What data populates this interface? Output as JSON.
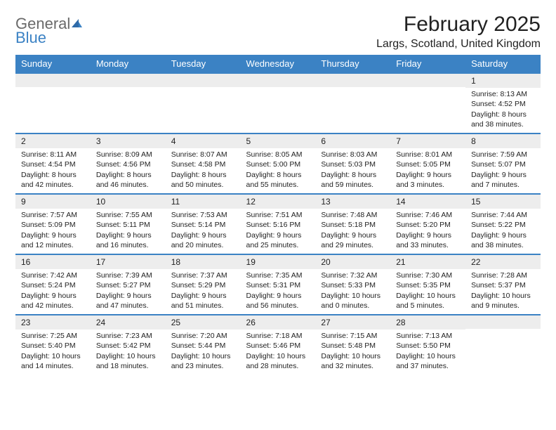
{
  "brand": {
    "general": "General",
    "blue": "Blue"
  },
  "title": "February 2025",
  "location": "Largs, Scotland, United Kingdom",
  "colors": {
    "header_bg": "#3b82c4",
    "header_text": "#ffffff",
    "row_border": "#3b82c4",
    "daynum_bg": "#ededed",
    "page_bg": "#ffffff",
    "text": "#222222",
    "logo_gray": "#6a6a6a",
    "logo_blue": "#3b82c4"
  },
  "typography": {
    "title_fontsize": 30,
    "location_fontsize": 16,
    "header_fontsize": 13,
    "cell_fontsize": 10.5,
    "daynum_fontsize": 12
  },
  "weekdays": [
    "Sunday",
    "Monday",
    "Tuesday",
    "Wednesday",
    "Thursday",
    "Friday",
    "Saturday"
  ],
  "weeks": [
    [
      null,
      null,
      null,
      null,
      null,
      null,
      {
        "n": "1",
        "sunrise": "Sunrise: 8:13 AM",
        "sunset": "Sunset: 4:52 PM",
        "daylight": "Daylight: 8 hours and 38 minutes."
      }
    ],
    [
      {
        "n": "2",
        "sunrise": "Sunrise: 8:11 AM",
        "sunset": "Sunset: 4:54 PM",
        "daylight": "Daylight: 8 hours and 42 minutes."
      },
      {
        "n": "3",
        "sunrise": "Sunrise: 8:09 AM",
        "sunset": "Sunset: 4:56 PM",
        "daylight": "Daylight: 8 hours and 46 minutes."
      },
      {
        "n": "4",
        "sunrise": "Sunrise: 8:07 AM",
        "sunset": "Sunset: 4:58 PM",
        "daylight": "Daylight: 8 hours and 50 minutes."
      },
      {
        "n": "5",
        "sunrise": "Sunrise: 8:05 AM",
        "sunset": "Sunset: 5:00 PM",
        "daylight": "Daylight: 8 hours and 55 minutes."
      },
      {
        "n": "6",
        "sunrise": "Sunrise: 8:03 AM",
        "sunset": "Sunset: 5:03 PM",
        "daylight": "Daylight: 8 hours and 59 minutes."
      },
      {
        "n": "7",
        "sunrise": "Sunrise: 8:01 AM",
        "sunset": "Sunset: 5:05 PM",
        "daylight": "Daylight: 9 hours and 3 minutes."
      },
      {
        "n": "8",
        "sunrise": "Sunrise: 7:59 AM",
        "sunset": "Sunset: 5:07 PM",
        "daylight": "Daylight: 9 hours and 7 minutes."
      }
    ],
    [
      {
        "n": "9",
        "sunrise": "Sunrise: 7:57 AM",
        "sunset": "Sunset: 5:09 PM",
        "daylight": "Daylight: 9 hours and 12 minutes."
      },
      {
        "n": "10",
        "sunrise": "Sunrise: 7:55 AM",
        "sunset": "Sunset: 5:11 PM",
        "daylight": "Daylight: 9 hours and 16 minutes."
      },
      {
        "n": "11",
        "sunrise": "Sunrise: 7:53 AM",
        "sunset": "Sunset: 5:14 PM",
        "daylight": "Daylight: 9 hours and 20 minutes."
      },
      {
        "n": "12",
        "sunrise": "Sunrise: 7:51 AM",
        "sunset": "Sunset: 5:16 PM",
        "daylight": "Daylight: 9 hours and 25 minutes."
      },
      {
        "n": "13",
        "sunrise": "Sunrise: 7:48 AM",
        "sunset": "Sunset: 5:18 PM",
        "daylight": "Daylight: 9 hours and 29 minutes."
      },
      {
        "n": "14",
        "sunrise": "Sunrise: 7:46 AM",
        "sunset": "Sunset: 5:20 PM",
        "daylight": "Daylight: 9 hours and 33 minutes."
      },
      {
        "n": "15",
        "sunrise": "Sunrise: 7:44 AM",
        "sunset": "Sunset: 5:22 PM",
        "daylight": "Daylight: 9 hours and 38 minutes."
      }
    ],
    [
      {
        "n": "16",
        "sunrise": "Sunrise: 7:42 AM",
        "sunset": "Sunset: 5:24 PM",
        "daylight": "Daylight: 9 hours and 42 minutes."
      },
      {
        "n": "17",
        "sunrise": "Sunrise: 7:39 AM",
        "sunset": "Sunset: 5:27 PM",
        "daylight": "Daylight: 9 hours and 47 minutes."
      },
      {
        "n": "18",
        "sunrise": "Sunrise: 7:37 AM",
        "sunset": "Sunset: 5:29 PM",
        "daylight": "Daylight: 9 hours and 51 minutes."
      },
      {
        "n": "19",
        "sunrise": "Sunrise: 7:35 AM",
        "sunset": "Sunset: 5:31 PM",
        "daylight": "Daylight: 9 hours and 56 minutes."
      },
      {
        "n": "20",
        "sunrise": "Sunrise: 7:32 AM",
        "sunset": "Sunset: 5:33 PM",
        "daylight": "Daylight: 10 hours and 0 minutes."
      },
      {
        "n": "21",
        "sunrise": "Sunrise: 7:30 AM",
        "sunset": "Sunset: 5:35 PM",
        "daylight": "Daylight: 10 hours and 5 minutes."
      },
      {
        "n": "22",
        "sunrise": "Sunrise: 7:28 AM",
        "sunset": "Sunset: 5:37 PM",
        "daylight": "Daylight: 10 hours and 9 minutes."
      }
    ],
    [
      {
        "n": "23",
        "sunrise": "Sunrise: 7:25 AM",
        "sunset": "Sunset: 5:40 PM",
        "daylight": "Daylight: 10 hours and 14 minutes."
      },
      {
        "n": "24",
        "sunrise": "Sunrise: 7:23 AM",
        "sunset": "Sunset: 5:42 PM",
        "daylight": "Daylight: 10 hours and 18 minutes."
      },
      {
        "n": "25",
        "sunrise": "Sunrise: 7:20 AM",
        "sunset": "Sunset: 5:44 PM",
        "daylight": "Daylight: 10 hours and 23 minutes."
      },
      {
        "n": "26",
        "sunrise": "Sunrise: 7:18 AM",
        "sunset": "Sunset: 5:46 PM",
        "daylight": "Daylight: 10 hours and 28 minutes."
      },
      {
        "n": "27",
        "sunrise": "Sunrise: 7:15 AM",
        "sunset": "Sunset: 5:48 PM",
        "daylight": "Daylight: 10 hours and 32 minutes."
      },
      {
        "n": "28",
        "sunrise": "Sunrise: 7:13 AM",
        "sunset": "Sunset: 5:50 PM",
        "daylight": "Daylight: 10 hours and 37 minutes."
      },
      null
    ]
  ]
}
